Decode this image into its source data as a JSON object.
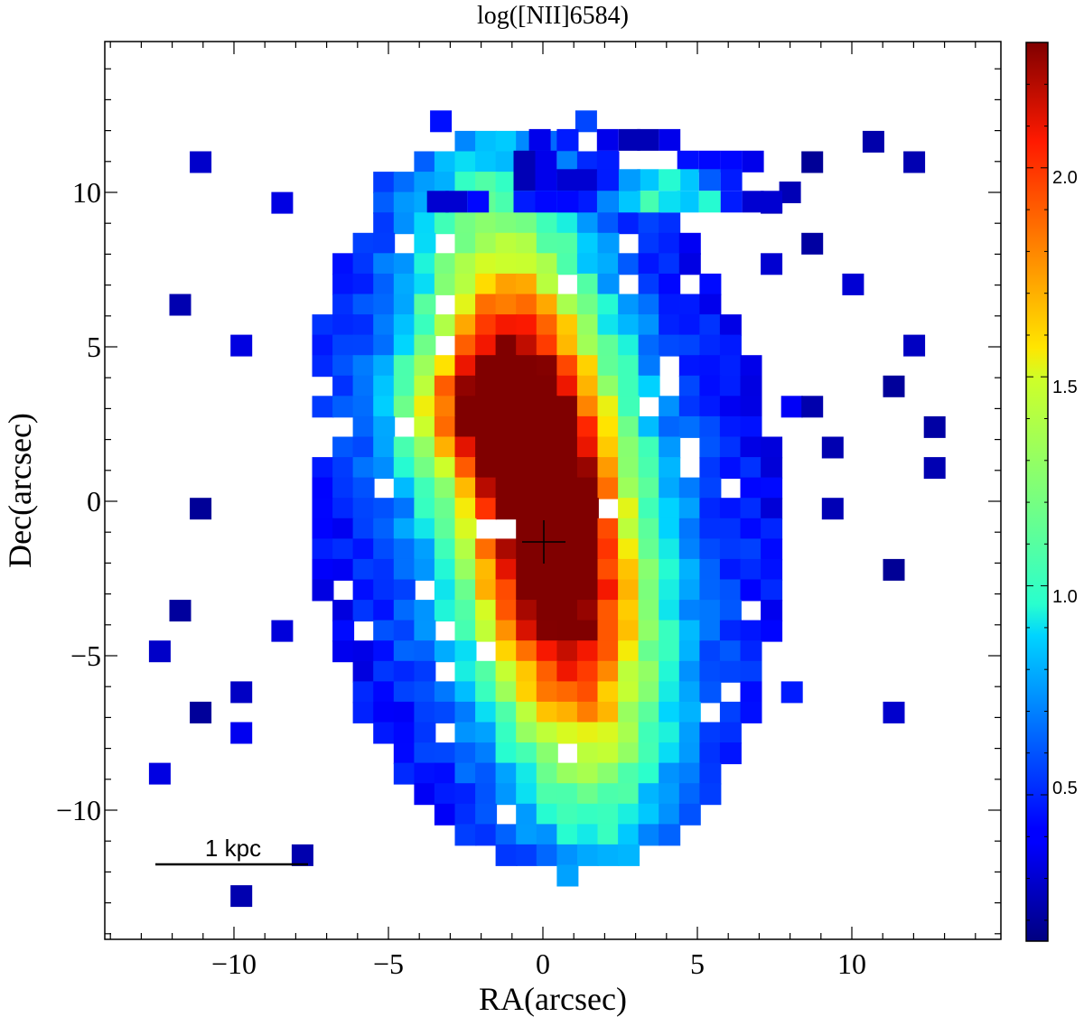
{
  "chart_data": {
    "type": "heatmap",
    "title": "log([NII]6584)",
    "xlabel": "RA(arcsec)",
    "ylabel": "Dec(arcsec)",
    "xlim": [
      14.5,
      -14.5
    ],
    "ylim": [
      -14.5,
      15.5
    ],
    "xticks": [
      -10,
      -5,
      0,
      5,
      10
    ],
    "xtick_labels": [
      "−10",
      "−5",
      "0",
      "5",
      "10"
    ],
    "yticks": [
      -10,
      -5,
      0,
      5,
      10
    ],
    "ytick_labels": [
      "−10",
      "−5",
      "0",
      "5",
      "10"
    ],
    "pixel_size_arcsec": 0.66,
    "grid": false,
    "colormap": "jet",
    "colorbar": {
      "range": [
        0.15,
        2.3
      ],
      "ticks": [
        0.5,
        1.0,
        1.5,
        2.0
      ],
      "tick_labels": [
        "0.5",
        "1.0",
        "1.5",
        "2.0"
      ]
    },
    "center_marker": {
      "ra": 0.0,
      "dec": -1.3,
      "symbol": "+"
    },
    "scalebar": {
      "label": "1 kpc",
      "length_arcsec": 4.9,
      "ra_start": 12.4,
      "dec": -12.7
    },
    "grid_origin": {
      "ra_of_col0": 10.0,
      "dec_of_row0": 11.9
    },
    "rows": [
      "..........7..........",
      "......2233..7........",
      "...44445.51.........",
      "...2..4567899876655.....",
      "...2..3445555..3422.....",
      "....45577877679898.............2",
      "...778899887989875...........",
      "...67786666665554332...44335....",
      "....56797566666669884444......",
      "..56866766669991166967764...3",
      "...6978666553222565666647...3",
      "...7..7866865421136",
      "...6689....6666666546421",
      "..8698..6567553211134344......",
      ".8777...666697.....3",
      ".6799.......6789...53...",
      ".6.7...3399.8...5444......",
      "......55566......",
      "55...............4..8"
    ],
    "values_by_pixel": [
      {
        "ra": 1.4,
        "dec": 12.3,
        "v": 0.55
      },
      {
        "ra": -3.3,
        "dec": 12.3,
        "v": 0.42
      },
      {
        "ra": 4.1,
        "dec": 11.7,
        "v": 0.35
      },
      {
        "ra": 3.4,
        "dec": 11.7,
        "v": 0.25
      },
      {
        "ra": 2.8,
        "dec": 11.7,
        "v": 0.25
      },
      {
        "ra": 2.1,
        "dec": 11.7,
        "v": 0.35
      },
      {
        "ra": 0.8,
        "dec": 11.7,
        "v": 0.45
      },
      {
        "ra": -0.1,
        "dec": 11.7,
        "v": 0.35
      },
      {
        "ra": 6.8,
        "dec": 11.0,
        "v": 0.35
      },
      {
        "ra": 6.1,
        "dec": 11.0,
        "v": 0.4
      },
      {
        "ra": 5.4,
        "dec": 11.0,
        "v": 0.4
      },
      {
        "ra": 4.7,
        "dec": 11.0,
        "v": 0.42
      },
      {
        "ra": 2.1,
        "dec": 11.0,
        "v": 0.45
      },
      {
        "ra": 0.1,
        "dec": 11.0,
        "v": 0.35
      },
      {
        "ra": -0.6,
        "dec": 11.0,
        "v": 0.25
      },
      {
        "ra": 8.0,
        "dec": 10.0,
        "v": 0.25
      },
      {
        "ra": 6.1,
        "dec": 10.4,
        "v": 0.45
      },
      {
        "ra": 5.4,
        "dec": 10.4,
        "v": 0.6
      },
      {
        "ra": 4.7,
        "dec": 10.4,
        "v": 0.85
      },
      {
        "ra": 4.1,
        "dec": 10.4,
        "v": 0.95
      },
      {
        "ra": 3.4,
        "dec": 10.4,
        "v": 0.85
      },
      {
        "ra": 2.8,
        "dec": 10.4,
        "v": 0.75
      },
      {
        "ra": 2.1,
        "dec": 10.4,
        "v": 0.45
      },
      {
        "ra": 1.4,
        "dec": 10.4,
        "v": 0.3
      },
      {
        "ra": 0.8,
        "dec": 10.4,
        "v": 0.3
      },
      {
        "ra": 0.1,
        "dec": 10.4,
        "v": 0.35
      },
      {
        "ra": -0.6,
        "dec": 10.4,
        "v": 0.25
      },
      {
        "ra": 7.4,
        "dec": 9.7,
        "v": 0.3
      },
      {
        "ra": 6.8,
        "dec": 9.7,
        "v": 0.3
      },
      {
        "ra": 6.1,
        "dec": 9.7,
        "v": 0.45
      },
      {
        "ra": 5.4,
        "dec": 9.7,
        "v": 0.95
      },
      {
        "ra": 4.7,
        "dec": 9.7,
        "v": 0.85
      },
      {
        "ra": 4.1,
        "dec": 9.7,
        "v": 0.9
      },
      {
        "ra": 3.4,
        "dec": 9.7,
        "v": 1.05
      },
      {
        "ra": 2.8,
        "dec": 9.7,
        "v": 0.85
      },
      {
        "ra": 2.1,
        "dec": 9.7,
        "v": 0.7
      },
      {
        "ra": 1.4,
        "dec": 9.7,
        "v": 0.45
      },
      {
        "ra": 0.8,
        "dec": 9.7,
        "v": 0.4
      },
      {
        "ra": 0.1,
        "dec": 9.7,
        "v": 0.4
      },
      {
        "ra": -0.6,
        "dec": 9.7,
        "v": 0.45
      },
      {
        "ra": -2.1,
        "dec": 9.7,
        "v": 0.4
      },
      {
        "ra": -2.8,
        "dec": 9.7,
        "v": 0.3
      },
      {
        "ra": -3.4,
        "dec": 9.7,
        "v": 0.3
      }
    ]
  }
}
